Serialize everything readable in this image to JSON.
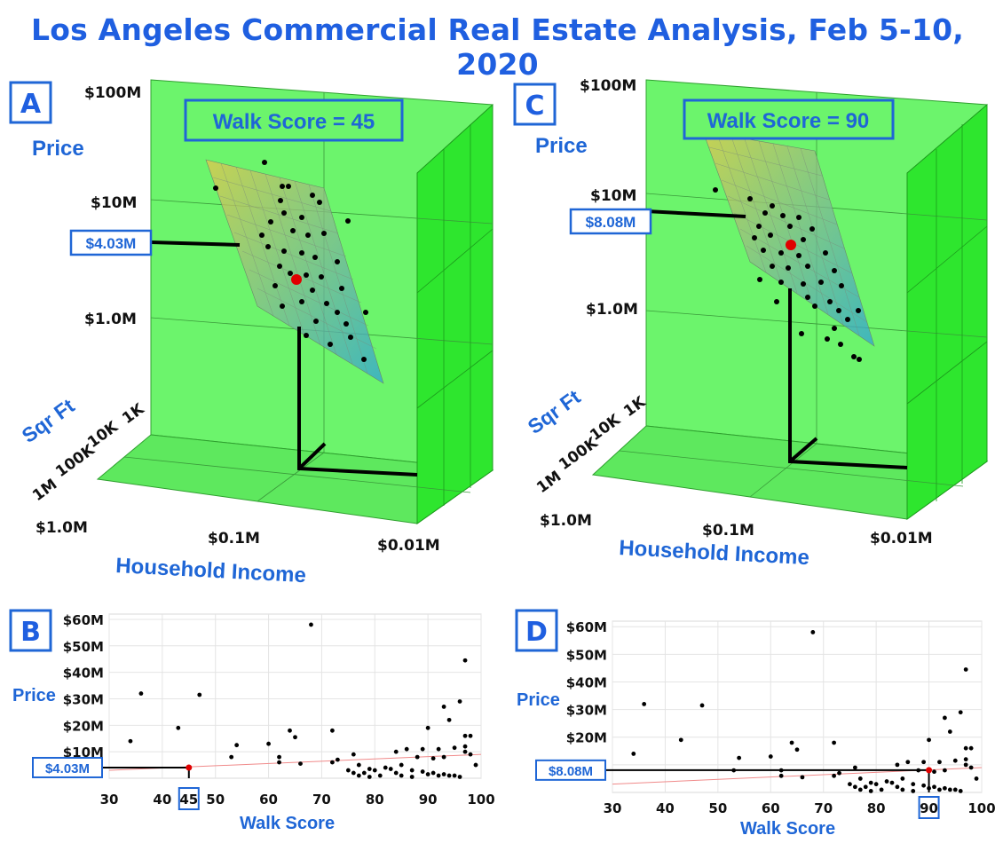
{
  "title": "Los Angeles Commercial Real Estate Analysis, Feb 5-10, 2020",
  "colors": {
    "accent": "#1f66d6",
    "box_green": "#5cf55c",
    "predicted": "#e00000"
  },
  "panels_3d": [
    {
      "letter": "A",
      "walk_label": "Walk Score = 45",
      "price_label": "Price",
      "sqft_label": "Sqr Ft",
      "income_label": "Household Income",
      "price_ticks": [
        "$100M",
        "$10M",
        "$1.0M"
      ],
      "sqft_ticks": [
        "1K",
        "10K",
        "100K",
        "1M"
      ],
      "income_ticks": [
        "$1.0M",
        "$0.1M",
        "$0.01M"
      ],
      "predicted_label": "$4.03M"
    },
    {
      "letter": "C",
      "walk_label": "Walk Score = 90",
      "price_label": "Price",
      "sqft_label": "Sqr Ft",
      "income_label": "Household Income",
      "price_ticks": [
        "$100M",
        "$10M",
        "$1.0M"
      ],
      "sqft_ticks": [
        "1K",
        "10K",
        "100K",
        "1M"
      ],
      "income_ticks": [
        "$1.0M",
        "$0.1M",
        "$0.01M"
      ],
      "predicted_label": "$8.08M"
    }
  ],
  "chart_data": [
    {
      "type": "scatter",
      "panel": "B",
      "xlabel": "Walk Score",
      "ylabel": "Price",
      "xlim": [
        30,
        100
      ],
      "ylim": [
        0,
        62
      ],
      "x_ticks": [
        30,
        40,
        50,
        60,
        70,
        80,
        90,
        100
      ],
      "y_ticks": [
        "$10M",
        "$20M",
        "$30M",
        "$40M",
        "$50M",
        "$60M"
      ],
      "y_tick_values": [
        10,
        20,
        30,
        40,
        50,
        60
      ],
      "grid": true,
      "predicted_point": {
        "x": 45,
        "y": 4.03,
        "x_label": "45",
        "y_label": "$4.03M"
      },
      "trend_line": {
        "x": [
          30,
          100
        ],
        "y": [
          3.0,
          9.0
        ]
      },
      "points": [
        [
          34,
          14
        ],
        [
          36,
          32
        ],
        [
          43,
          19
        ],
        [
          47,
          31.5
        ],
        [
          53,
          8
        ],
        [
          54,
          12.5
        ],
        [
          60,
          13
        ],
        [
          62,
          8
        ],
        [
          62,
          6
        ],
        [
          64,
          18
        ],
        [
          65,
          15.5
        ],
        [
          66,
          5.5
        ],
        [
          68,
          58
        ],
        [
          72,
          18
        ],
        [
          72,
          6
        ],
        [
          73,
          7
        ],
        [
          75,
          3
        ],
        [
          76,
          9
        ],
        [
          76,
          2
        ],
        [
          77,
          5
        ],
        [
          77,
          1
        ],
        [
          78,
          2
        ],
        [
          79,
          3.5
        ],
        [
          79,
          0.5
        ],
        [
          80,
          3
        ],
        [
          81,
          1
        ],
        [
          82,
          4
        ],
        [
          83,
          3.5
        ],
        [
          84,
          2
        ],
        [
          84,
          10
        ],
        [
          85,
          5
        ],
        [
          85,
          1
        ],
        [
          86,
          11
        ],
        [
          87,
          3
        ],
        [
          87,
          0.5
        ],
        [
          88,
          8
        ],
        [
          89,
          11
        ],
        [
          89,
          2.5
        ],
        [
          90,
          19
        ],
        [
          90,
          1.5
        ],
        [
          91,
          7.5
        ],
        [
          91,
          2
        ],
        [
          92,
          11
        ],
        [
          92,
          1
        ],
        [
          93,
          8
        ],
        [
          93,
          27
        ],
        [
          93,
          1.5
        ],
        [
          94,
          22
        ],
        [
          94,
          1
        ],
        [
          95,
          11.5
        ],
        [
          95,
          1
        ],
        [
          96,
          29
        ],
        [
          96,
          0.5
        ],
        [
          97,
          44.5
        ],
        [
          97,
          16
        ],
        [
          97,
          12
        ],
        [
          97,
          10
        ],
        [
          98,
          16
        ],
        [
          98,
          9
        ],
        [
          99,
          5
        ]
      ]
    },
    {
      "type": "scatter",
      "panel": "D",
      "xlabel": "Walk Score",
      "ylabel": "Price",
      "xlim": [
        30,
        100
      ],
      "ylim": [
        0,
        62
      ],
      "x_ticks": [
        30,
        40,
        50,
        60,
        70,
        80,
        90,
        100
      ],
      "y_ticks": [
        "$10M",
        "$20M",
        "$30M",
        "$40M",
        "$50M",
        "$60M"
      ],
      "y_tick_values": [
        10,
        20,
        30,
        40,
        50,
        60
      ],
      "grid": true,
      "predicted_point": {
        "x": 90,
        "y": 8.08,
        "x_label": "90",
        "y_label": "$8.08M"
      },
      "trend_line": {
        "x": [
          30,
          100
        ],
        "y": [
          3.0,
          9.0
        ]
      },
      "points": [
        [
          34,
          14
        ],
        [
          36,
          32
        ],
        [
          43,
          19
        ],
        [
          47,
          31.5
        ],
        [
          53,
          8
        ],
        [
          54,
          12.5
        ],
        [
          60,
          13
        ],
        [
          62,
          8
        ],
        [
          62,
          6
        ],
        [
          64,
          18
        ],
        [
          65,
          15.5
        ],
        [
          66,
          5.5
        ],
        [
          68,
          58
        ],
        [
          72,
          18
        ],
        [
          72,
          6
        ],
        [
          73,
          7
        ],
        [
          75,
          3
        ],
        [
          76,
          9
        ],
        [
          76,
          2
        ],
        [
          77,
          5
        ],
        [
          77,
          1
        ],
        [
          78,
          2
        ],
        [
          79,
          3.5
        ],
        [
          79,
          0.5
        ],
        [
          80,
          3
        ],
        [
          81,
          1
        ],
        [
          82,
          4
        ],
        [
          83,
          3.5
        ],
        [
          84,
          2
        ],
        [
          84,
          10
        ],
        [
          85,
          5
        ],
        [
          85,
          1
        ],
        [
          86,
          11
        ],
        [
          87,
          3
        ],
        [
          87,
          0.5
        ],
        [
          88,
          8
        ],
        [
          89,
          11
        ],
        [
          89,
          2.5
        ],
        [
          90,
          19
        ],
        [
          90,
          1.5
        ],
        [
          91,
          7.5
        ],
        [
          91,
          2
        ],
        [
          92,
          11
        ],
        [
          92,
          1
        ],
        [
          93,
          8
        ],
        [
          93,
          27
        ],
        [
          93,
          1.5
        ],
        [
          94,
          22
        ],
        [
          94,
          1
        ],
        [
          95,
          11.5
        ],
        [
          95,
          1
        ],
        [
          96,
          29
        ],
        [
          96,
          0.5
        ],
        [
          97,
          44.5
        ],
        [
          97,
          16
        ],
        [
          97,
          12
        ],
        [
          97,
          10
        ],
        [
          98,
          16
        ],
        [
          98,
          9
        ],
        [
          99,
          5
        ]
      ]
    }
  ]
}
